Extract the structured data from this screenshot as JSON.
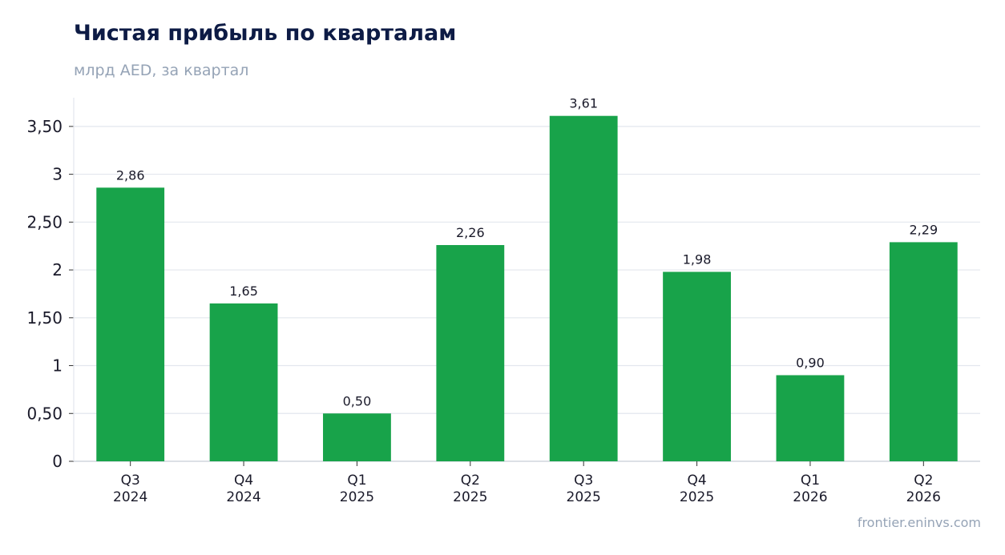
{
  "colors": {
    "bar": "#18a34a",
    "grid": "#e3e7ee",
    "axis": "#d0d5dd",
    "title": "#0d1b45",
    "muted": "#95a3b6",
    "text": "#1a1a2a"
  },
  "source": "frontier.eninvs.com",
  "chart_data": {
    "type": "bar",
    "title": "Чистая прибыль по кварталам",
    "subtitle": "млрд AED, за квартал",
    "xlabel": "",
    "ylabel": "",
    "categories": [
      [
        "Q3",
        "2024"
      ],
      [
        "Q4",
        "2024"
      ],
      [
        "Q1",
        "2025"
      ],
      [
        "Q2",
        "2025"
      ],
      [
        "Q3",
        "2025"
      ],
      [
        "Q4",
        "2025"
      ],
      [
        "Q1",
        "2026"
      ],
      [
        "Q2",
        "2026"
      ]
    ],
    "values": [
      2.86,
      1.65,
      0.5,
      2.26,
      3.61,
      1.98,
      0.9,
      2.29
    ],
    "value_labels": [
      "2,86",
      "1,65",
      "0,50",
      "2,26",
      "3,61",
      "1,98",
      "0,90",
      "2,29"
    ],
    "y_ticks": [
      0,
      0.5,
      1,
      1.5,
      2,
      2.5,
      3,
      3.5
    ],
    "y_tick_labels": [
      "0",
      "0,50",
      "1",
      "1,50",
      "2",
      "2,50",
      "3",
      "3,50"
    ],
    "ylim": [
      0,
      3.8
    ],
    "grid": true,
    "legend": "none"
  }
}
